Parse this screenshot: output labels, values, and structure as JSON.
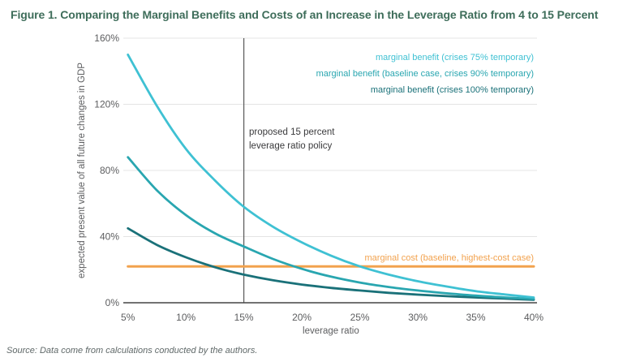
{
  "title": "Figure 1. Comparing the Marginal Benefits and Costs of an Increase in the Leverage Ratio from 4 to 15 Percent",
  "source_note": "Source: Data come from calculations conducted by the authors.",
  "annotation_text": "proposed 15 percent\nleverage ratio policy",
  "chart_data": {
    "type": "line",
    "xlabel": "leverage ratio",
    "ylabel": "expected present value of all future changes in GDP",
    "xlim": [
      5,
      40
    ],
    "ylim": [
      0,
      160
    ],
    "xticks": [
      "5%",
      "10%",
      "15%",
      "20%",
      "25%",
      "30%",
      "35%",
      "40%"
    ],
    "xtick_values": [
      5,
      10,
      15,
      20,
      25,
      30,
      35,
      40
    ],
    "yticks": [
      "0%",
      "40%",
      "80%",
      "120%",
      "160%"
    ],
    "ytick_values": [
      0,
      40,
      80,
      120,
      160
    ],
    "grid": "horizontal",
    "legend_position": "top-right",
    "policy_line": {
      "x": 15
    },
    "x": [
      5,
      7.5,
      10,
      12.5,
      15,
      17.5,
      20,
      22.5,
      25,
      27.5,
      30,
      32.5,
      35,
      37.5,
      40
    ],
    "series": [
      {
        "name": "marginal benefit (crises 75% temporary)",
        "color": "#3fc1d3",
        "values": [
          150,
          119,
          93,
          74,
          58,
          46,
          36.5,
          28.5,
          22,
          17,
          13,
          9.8,
          7,
          5,
          3.2
        ]
      },
      {
        "name": "marginal benefit (baseline case, crises 90% temporary)",
        "color": "#29a6b0",
        "values": [
          88,
          68,
          53,
          42,
          34,
          26.5,
          20.5,
          15.8,
          12.2,
          9.5,
          7.4,
          5.7,
          4.3,
          3.2,
          2.3
        ]
      },
      {
        "name": "marginal benefit (crises 100% temporary)",
        "color": "#1a7179",
        "values": [
          45,
          35,
          27.5,
          21.5,
          17,
          13.6,
          11,
          9,
          7.4,
          6,
          4.9,
          4,
          3.2,
          2.5,
          1.8
        ]
      },
      {
        "name": "marginal cost (baseline, highest-cost case)",
        "color": "#f2a24e",
        "values": [
          22,
          22,
          22,
          22,
          22,
          22,
          22,
          22,
          22,
          22,
          22,
          22,
          22,
          22,
          22
        ]
      }
    ]
  }
}
